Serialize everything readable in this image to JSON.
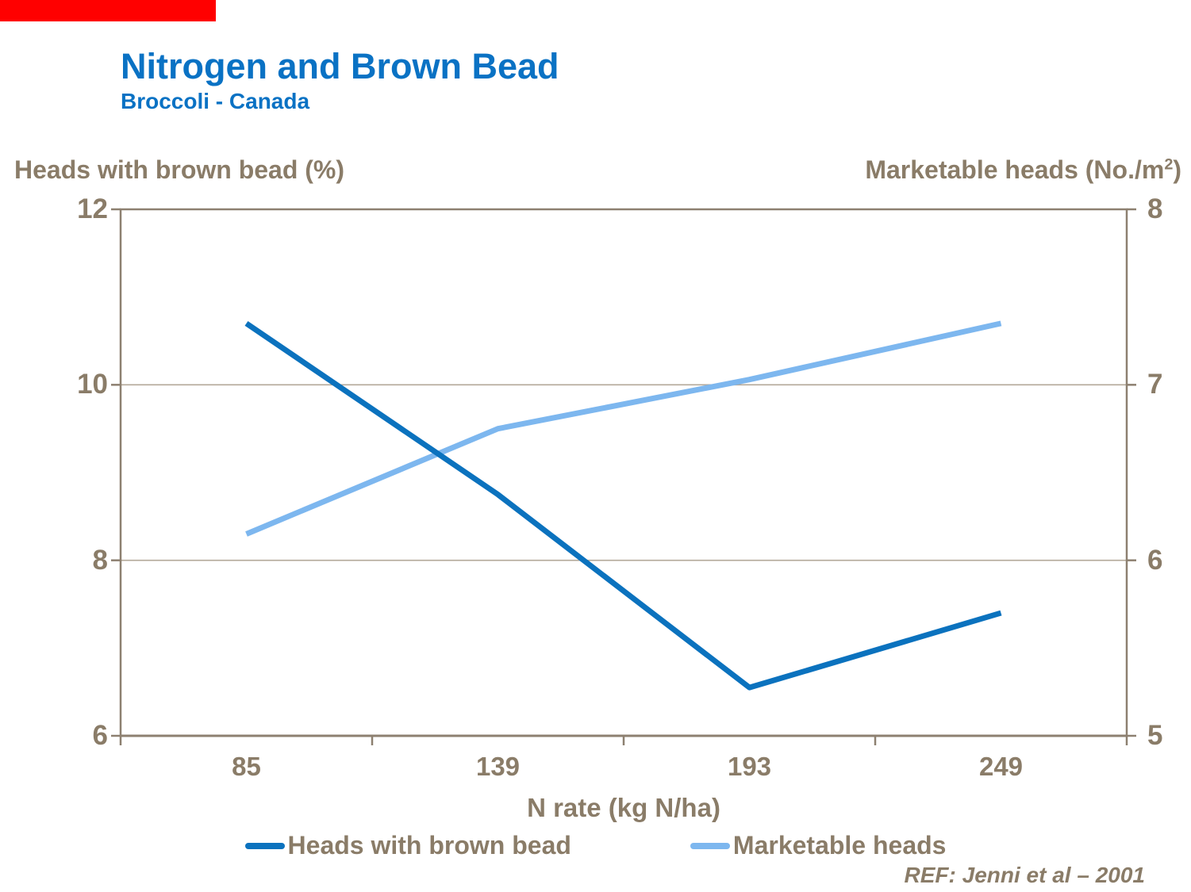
{
  "title": {
    "text": "Nitrogen and Brown Bead",
    "subtitle": "Broccoli - Canada",
    "color": "#0a72c4"
  },
  "right_header": {
    "prefix": "Marketable heads (No./m",
    "sup": "2",
    "suffix": ")"
  },
  "colors": {
    "accent_red": "#ff0000",
    "title_blue": "#0a72c4",
    "text_brown": "#8a7c68",
    "plot_border": "#8d8070",
    "gridline": "#b3a899",
    "series_dark_blue": "#0b72be",
    "series_light_blue": "#7db7ef"
  },
  "chart_data": {
    "type": "line",
    "x": [
      85,
      139,
      193,
      249
    ],
    "xlabel": "N rate (kg N/ha)",
    "left_axis": {
      "label": "Heads with brown bead (%)",
      "ticks": [
        12,
        10,
        8,
        6
      ],
      "range": [
        6,
        12
      ]
    },
    "right_axis": {
      "label": "Marketable heads (No./m2)",
      "ticks": [
        8,
        7,
        6,
        5
      ],
      "range": [
        5,
        8
      ]
    },
    "gridlines_left_values": [
      10,
      8
    ],
    "series": [
      {
        "name": "Heads with brown bead",
        "axis": "left",
        "color": "#0b72be",
        "values": [
          10.7,
          8.75,
          6.55,
          7.4
        ]
      },
      {
        "name": "Marketable heads",
        "axis": "right",
        "color": "#7db7ef",
        "values": [
          6.15,
          6.75,
          7.03,
          7.35
        ]
      }
    ],
    "legend_position": "bottom"
  },
  "ref": "REF: Jenni et al – 2001"
}
